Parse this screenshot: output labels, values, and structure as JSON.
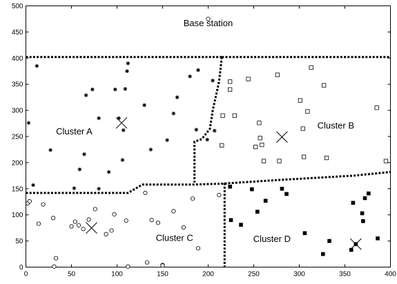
{
  "chart_data": {
    "type": "scatter",
    "title": "",
    "xlabel": "",
    "ylabel": "",
    "xlim": [
      0,
      400
    ],
    "ylim": [
      0,
      500
    ],
    "xticks": [
      0,
      50,
      100,
      150,
      200,
      250,
      300,
      350,
      400
    ],
    "yticks": [
      0,
      50,
      100,
      150,
      200,
      250,
      300,
      350,
      400,
      450,
      500
    ],
    "grid": false,
    "legend": "none",
    "annotations": [
      {
        "text": "Base station",
        "x": 200,
        "y": 467
      },
      {
        "text": "Cluster A",
        "x": 53,
        "y": 260
      },
      {
        "text": "Cluster B",
        "x": 340,
        "y": 271
      },
      {
        "text": "Cluster C",
        "x": 163,
        "y": 56
      },
      {
        "text": "Cluster D",
        "x": 270,
        "y": 54
      }
    ],
    "base_station": {
      "x": 200,
      "y": 475,
      "marker": "open-circle"
    },
    "cluster_heads": [
      {
        "cluster": "Cluster A",
        "x": 105,
        "y": 276
      },
      {
        "cluster": "Cluster B",
        "x": 281,
        "y": 249
      },
      {
        "cluster": "Cluster C",
        "x": 72,
        "y": 75
      },
      {
        "cluster": "Cluster D",
        "x": 362,
        "y": 44
      }
    ],
    "series": [
      {
        "marker": "asterisk",
        "points": [
          [
            12,
            385
          ],
          [
            3,
            276
          ],
          [
            8,
            157
          ],
          [
            27,
            224
          ],
          [
            53,
            151
          ],
          [
            59,
            187
          ],
          [
            64,
            216
          ],
          [
            66,
            329
          ],
          [
            80,
            150
          ],
          [
            80,
            285
          ],
          [
            91,
            182
          ],
          [
            102,
            285
          ],
          [
            106,
            205
          ],
          [
            107,
            262
          ],
          [
            109,
            341
          ],
          [
            111,
            375
          ],
          [
            112,
            390
          ],
          [
            130,
            310
          ],
          [
            137,
            225
          ],
          [
            155,
            243
          ],
          [
            162,
            294
          ],
          [
            166,
            325
          ],
          [
            180,
            365
          ],
          [
            189,
            377
          ],
          [
            199,
            244
          ],
          [
            205,
            357
          ],
          [
            207,
            261
          ],
          [
            187,
            263
          ],
          [
            98,
            340
          ],
          [
            73,
            340
          ]
        ]
      },
      {
        "marker": "open-square",
        "points": [
          [
            215,
            233
          ],
          [
            216,
            290
          ],
          [
            224,
            355
          ],
          [
            224,
            340
          ],
          [
            229,
            290
          ],
          [
            244,
            360
          ],
          [
            252,
            230
          ],
          [
            256,
            276
          ],
          [
            257,
            247
          ],
          [
            259,
            234
          ],
          [
            261,
            203
          ],
          [
            276,
            368
          ],
          [
            278,
            203
          ],
          [
            301,
            319
          ],
          [
            304,
            265
          ],
          [
            305,
            211
          ],
          [
            309,
            298
          ],
          [
            313,
            382
          ],
          [
            327,
            348
          ],
          [
            330,
            209
          ],
          [
            385,
            305
          ],
          [
            395,
            203
          ]
        ]
      },
      {
        "marker": "open-circle",
        "points": [
          [
            2,
            122
          ],
          [
            4,
            126
          ],
          [
            14,
            83
          ],
          [
            19,
            120
          ],
          [
            30,
            94
          ],
          [
            31,
            1
          ],
          [
            33,
            17
          ],
          [
            50,
            78
          ],
          [
            54,
            87
          ],
          [
            58,
            80
          ],
          [
            63,
            73
          ],
          [
            69,
            91
          ],
          [
            76,
            111
          ],
          [
            88,
            63
          ],
          [
            94,
            70
          ],
          [
            97,
            101
          ],
          [
            110,
            89
          ],
          [
            112,
            1
          ],
          [
            131,
            142
          ],
          [
            133,
            9
          ],
          [
            138,
            90
          ],
          [
            145,
            85
          ],
          [
            150,
            4
          ],
          [
            150,
            3
          ],
          [
            162,
            107
          ],
          [
            173,
            76
          ],
          [
            183,
            131
          ],
          [
            189,
            36
          ],
          [
            212,
            138
          ]
        ]
      },
      {
        "marker": "filled-square",
        "points": [
          [
            224,
            154
          ],
          [
            225,
            90
          ],
          [
            236,
            81
          ],
          [
            248,
            149
          ],
          [
            254,
            106
          ],
          [
            263,
            127
          ],
          [
            281,
            150
          ],
          [
            286,
            140
          ],
          [
            306,
            65
          ],
          [
            326,
            25
          ],
          [
            333,
            50
          ],
          [
            357,
            33
          ],
          [
            359,
            123
          ],
          [
            362,
            44
          ],
          [
            369,
            103
          ],
          [
            370,
            88
          ],
          [
            372,
            132
          ],
          [
            376,
            141
          ],
          [
            386,
            55
          ]
        ]
      }
    ],
    "boundaries": [
      {
        "name": "base-station-line-left",
        "points": [
          [
            0,
            402
          ],
          [
            215,
            402
          ]
        ]
      },
      {
        "name": "base-station-line-right",
        "points": [
          [
            215,
            402
          ],
          [
            400,
            402
          ]
        ]
      },
      {
        "name": "a-b-boundary",
        "points": [
          [
            215,
            402
          ],
          [
            212,
            355
          ],
          [
            205,
            300
          ],
          [
            202,
            265
          ],
          [
            193,
            245
          ],
          [
            185,
            240
          ],
          [
            185,
            200
          ],
          [
            185,
            162
          ]
        ]
      },
      {
        "name": "a-c-boundary",
        "points": [
          [
            0,
            142
          ],
          [
            112,
            142
          ],
          [
            128,
            158
          ],
          [
            185,
            158
          ],
          [
            221,
            160
          ]
        ]
      },
      {
        "name": "c-d-boundary",
        "points": [
          [
            218,
            161
          ],
          [
            218,
            120
          ],
          [
            218,
            0
          ]
        ]
      },
      {
        "name": "b-d-boundary",
        "points": [
          [
            218,
            160
          ],
          [
            280,
            167
          ],
          [
            360,
            175
          ],
          [
            400,
            182
          ]
        ]
      }
    ]
  }
}
